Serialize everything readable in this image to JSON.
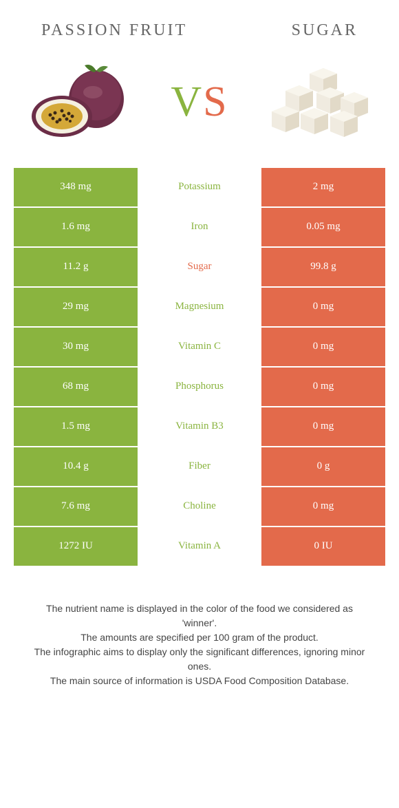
{
  "colors": {
    "green": "#8ab43f",
    "orange": "#e36a4b",
    "label_text": "#666666",
    "footer_text": "#444444",
    "white": "#ffffff"
  },
  "header": {
    "left_title": "Passion fruit",
    "right_title": "Sugar",
    "vs_v": "V",
    "vs_s": "S"
  },
  "table": {
    "rows": [
      {
        "left": "348 mg",
        "label": "Potassium",
        "right": "2 mg",
        "winner": "left"
      },
      {
        "left": "1.6 mg",
        "label": "Iron",
        "right": "0.05 mg",
        "winner": "left"
      },
      {
        "left": "11.2 g",
        "label": "Sugar",
        "right": "99.8 g",
        "winner": "right"
      },
      {
        "left": "29 mg",
        "label": "Magnesium",
        "right": "0 mg",
        "winner": "left"
      },
      {
        "left": "30 mg",
        "label": "Vitamin C",
        "right": "0 mg",
        "winner": "left"
      },
      {
        "left": "68 mg",
        "label": "Phosphorus",
        "right": "0 mg",
        "winner": "left"
      },
      {
        "left": "1.5 mg",
        "label": "Vitamin B3",
        "right": "0 mg",
        "winner": "left"
      },
      {
        "left": "10.4 g",
        "label": "Fiber",
        "right": "0 g",
        "winner": "left"
      },
      {
        "left": "7.6 mg",
        "label": "Choline",
        "right": "0 mg",
        "winner": "left"
      },
      {
        "left": "1272 IU",
        "label": "Vitamin A",
        "right": "0 IU",
        "winner": "left"
      }
    ]
  },
  "footer": {
    "line1": "The nutrient name is displayed in the color of the food we considered as 'winner'.",
    "line2": "The amounts are specified per 100 gram of the product.",
    "line3": "The infographic aims to display only the significant differences, ignoring minor ones.",
    "line4": "The main source of information is USDA Food Composition Database."
  }
}
